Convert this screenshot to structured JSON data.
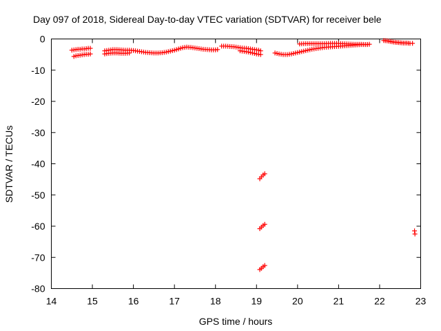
{
  "chart_data": {
    "type": "scatter",
    "title": "Day 097 of 2018, Sidereal Day-to-day VTEC variation (SDTVAR) for receiver bele",
    "xlabel": "GPS time / hours",
    "ylabel": "SDTVAR / TECUs",
    "xlim": [
      14,
      23
    ],
    "ylim": [
      -80,
      0
    ],
    "xticks": [
      "14",
      "15",
      "16",
      "17",
      "18",
      "19",
      "20",
      "21",
      "22",
      "23"
    ],
    "yticks": [
      "0",
      "-10",
      "-20",
      "-30",
      "-40",
      "-50",
      "-60",
      "-70",
      "-80"
    ],
    "grid": false,
    "marker": "plus",
    "color": "#ff0000",
    "series": [
      {
        "x": [
          14.5,
          14.55,
          14.6,
          14.65,
          14.7,
          14.75,
          14.8,
          14.85,
          14.9,
          14.95
        ],
        "y": [
          -3.6,
          -3.5,
          -3.4,
          -3.3,
          -3.3,
          -3.2,
          -3.2,
          -3.1,
          -3.0,
          -3.0
        ]
      },
      {
        "x": [
          14.55,
          14.6,
          14.65,
          14.7,
          14.75,
          14.8,
          14.85,
          14.9,
          14.95
        ],
        "y": [
          -5.6,
          -5.4,
          -5.3,
          -5.2,
          -5.1,
          -5.0,
          -4.9,
          -4.9,
          -4.8
        ]
      },
      {
        "x": [
          15.3,
          15.4,
          15.5,
          15.6,
          15.7,
          15.8,
          15.9,
          16.0,
          16.1,
          16.2,
          16.3,
          16.4,
          16.5,
          16.6,
          16.7,
          16.8,
          16.9,
          17.0,
          17.1,
          17.2,
          17.3,
          17.4,
          17.5,
          17.6,
          17.7,
          17.8,
          17.9,
          18.0,
          18.05
        ],
        "y": [
          -3.8,
          -3.6,
          -3.4,
          -3.4,
          -3.5,
          -3.6,
          -3.6,
          -3.7,
          -3.9,
          -4.1,
          -4.3,
          -4.4,
          -4.5,
          -4.5,
          -4.4,
          -4.2,
          -3.9,
          -3.6,
          -3.2,
          -2.8,
          -2.6,
          -2.7,
          -2.9,
          -3.1,
          -3.3,
          -3.4,
          -3.5,
          -3.5,
          -3.4
        ]
      },
      {
        "x": [
          15.3,
          15.4,
          15.5,
          15.6,
          15.7,
          15.8,
          15.9
        ],
        "y": [
          -4.8,
          -4.6,
          -4.5,
          -4.5,
          -4.6,
          -4.6,
          -4.5
        ]
      },
      {
        "x": [
          18.15,
          18.25,
          18.35,
          18.45,
          18.55,
          18.65,
          18.75,
          18.85,
          18.95,
          19.05,
          19.1
        ],
        "y": [
          -2.3,
          -2.3,
          -2.4,
          -2.5,
          -2.7,
          -2.9,
          -3.0,
          -3.2,
          -3.4,
          -3.6,
          -3.8
        ]
      },
      {
        "x": [
          18.6,
          18.7,
          18.8,
          18.9,
          19.0,
          19.1
        ],
        "y": [
          -3.8,
          -4.0,
          -4.2,
          -4.5,
          -4.8,
          -5.0
        ]
      },
      {
        "x": [
          19.08,
          19.12,
          19.16,
          19.2
        ],
        "y": [
          -44.8,
          -44.2,
          -43.6,
          -43.2
        ]
      },
      {
        "x": [
          19.08,
          19.12,
          19.16,
          19.2
        ],
        "y": [
          -60.8,
          -60.3,
          -59.8,
          -59.4
        ]
      },
      {
        "x": [
          19.08,
          19.12,
          19.16,
          19.2
        ],
        "y": [
          -73.9,
          -73.5,
          -73.0,
          -72.6
        ]
      },
      {
        "x": [
          19.45,
          19.55,
          19.65,
          19.75,
          19.85,
          19.95,
          20.05,
          20.15,
          20.25,
          20.35,
          20.45,
          20.55,
          20.65,
          20.75,
          20.85,
          20.95,
          21.05,
          21.15,
          21.25,
          21.35,
          21.45,
          21.55,
          21.65,
          21.75
        ],
        "y": [
          -4.5,
          -4.8,
          -5.0,
          -5.0,
          -4.8,
          -4.5,
          -4.2,
          -3.9,
          -3.6,
          -3.3,
          -3.1,
          -2.9,
          -2.7,
          -2.6,
          -2.5,
          -2.4,
          -2.3,
          -2.2,
          -2.1,
          -2.0,
          -1.9,
          -1.8,
          -1.8,
          -1.7
        ]
      },
      {
        "x": [
          20.05,
          20.2,
          20.35,
          20.5,
          20.65,
          20.8,
          20.95,
          21.1,
          21.25,
          21.4,
          21.55,
          21.7
        ],
        "y": [
          -1.6,
          -1.5,
          -1.5,
          -1.5,
          -1.5,
          -1.4,
          -1.4,
          -1.5,
          -1.6,
          -1.7,
          -1.7,
          -1.8
        ]
      },
      {
        "x": [
          22.1,
          22.18,
          22.26,
          22.34,
          22.42,
          22.5,
          22.58,
          22.66,
          22.74,
          22.8
        ],
        "y": [
          -0.5,
          -0.6,
          -0.8,
          -1.0,
          -1.1,
          -1.2,
          -1.3,
          -1.3,
          -1.4,
          -1.4
        ]
      },
      {
        "x": [
          22.85,
          22.86
        ],
        "y": [
          -61.5,
          -62.5
        ]
      }
    ]
  }
}
